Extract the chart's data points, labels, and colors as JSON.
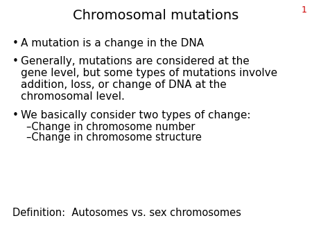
{
  "title": "Chromosomal mutations",
  "title_fontsize": 14,
  "title_color": "#000000",
  "background_color": "#ffffff",
  "slide_number": "1",
  "slide_number_color": "#cc0000",
  "slide_number_fontsize": 9,
  "bullet1": "A mutation is a change in the DNA",
  "bullet2_line1": "Generally, mutations are considered at the",
  "bullet2_line2": "gene level, but some types of mutations involve",
  "bullet2_line3": "addition, loss, or change of DNA at the",
  "bullet2_line4": "chromosomal level.",
  "bullet3": "We basically consider two types of change:",
  "sub1": "–Change in chromosome number",
  "sub2": "–Change in chromosome structure",
  "definition": "Definition:  Autosomes vs. sex chromosomes",
  "text_fontsize": 11,
  "sub_fontsize": 10.5,
  "def_fontsize": 10.5,
  "text_color": "#000000",
  "font_family": "DejaVu Sans"
}
